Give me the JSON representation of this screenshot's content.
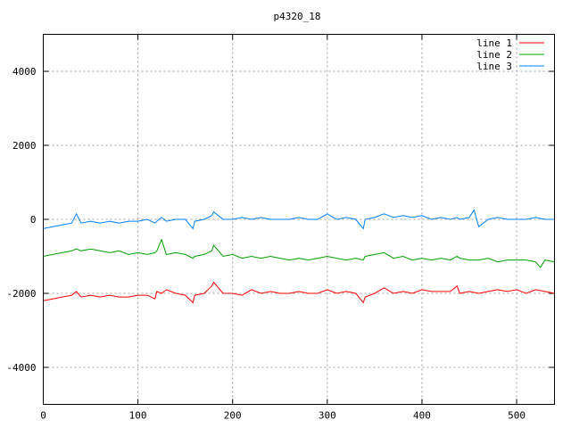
{
  "chart_data": {
    "type": "line",
    "title": "p4320_18",
    "xlabel": "",
    "ylabel": "",
    "xlim": [
      0,
      540
    ],
    "ylim": [
      -5000,
      5000
    ],
    "x_ticks": [
      0,
      100,
      200,
      300,
      400,
      500
    ],
    "y_ticks": [
      -4000,
      -2000,
      0,
      2000,
      4000
    ],
    "grid": true,
    "legend_position": "top-right",
    "series": [
      {
        "name": "line 1",
        "color": "#ff0000",
        "x": [
          0,
          10,
          20,
          30,
          35,
          40,
          50,
          60,
          70,
          80,
          90,
          100,
          110,
          118,
          120,
          125,
          130,
          140,
          150,
          158,
          160,
          170,
          178,
          180,
          190,
          200,
          210,
          220,
          230,
          240,
          250,
          260,
          270,
          280,
          290,
          300,
          310,
          320,
          330,
          338,
          340,
          350,
          360,
          370,
          380,
          390,
          400,
          410,
          420,
          430,
          437,
          440,
          450,
          460,
          470,
          480,
          490,
          500,
          510,
          520,
          530,
          540
        ],
        "values": [
          -2200,
          -2150,
          -2100,
          -2050,
          -1950,
          -2100,
          -2050,
          -2100,
          -2050,
          -2100,
          -2100,
          -2050,
          -2050,
          -2150,
          -1950,
          -2000,
          -1900,
          -2000,
          -2050,
          -2250,
          -2050,
          -2000,
          -1800,
          -1700,
          -2000,
          -2000,
          -2050,
          -1900,
          -2000,
          -1950,
          -2000,
          -2000,
          -1950,
          -2000,
          -2000,
          -1900,
          -2000,
          -1950,
          -2000,
          -2250,
          -2100,
          -2000,
          -1850,
          -2000,
          -1950,
          -2000,
          -1900,
          -1950,
          -1950,
          -1950,
          -1800,
          -2000,
          -1950,
          -2000,
          -1950,
          -1900,
          -1950,
          -1900,
          -2000,
          -1900,
          -1950,
          -2000
        ]
      },
      {
        "name": "line 2",
        "color": "#00a000",
        "x": [
          0,
          10,
          20,
          30,
          35,
          40,
          50,
          60,
          70,
          80,
          90,
          100,
          110,
          118,
          120,
          125,
          130,
          140,
          150,
          158,
          160,
          170,
          178,
          180,
          190,
          200,
          210,
          220,
          230,
          240,
          250,
          260,
          270,
          280,
          290,
          300,
          310,
          320,
          330,
          338,
          340,
          350,
          360,
          370,
          380,
          390,
          400,
          410,
          420,
          430,
          437,
          440,
          450,
          460,
          470,
          480,
          490,
          500,
          510,
          520,
          525,
          530,
          540
        ],
        "values": [
          -1000,
          -950,
          -900,
          -850,
          -800,
          -850,
          -800,
          -850,
          -900,
          -850,
          -950,
          -900,
          -950,
          -900,
          -850,
          -550,
          -950,
          -900,
          -950,
          -1050,
          -1000,
          -950,
          -850,
          -700,
          -1000,
          -950,
          -1050,
          -1000,
          -1050,
          -1000,
          -1050,
          -1100,
          -1050,
          -1100,
          -1050,
          -1000,
          -1050,
          -1100,
          -1050,
          -1100,
          -1000,
          -950,
          -900,
          -1050,
          -1000,
          -1100,
          -1050,
          -1100,
          -1050,
          -1100,
          -1000,
          -1050,
          -1100,
          -1100,
          -1050,
          -1150,
          -1100,
          -1100,
          -1100,
          -1150,
          -1300,
          -1100,
          -1150
        ]
      },
      {
        "name": "line 3",
        "color": "#0080ff",
        "x": [
          0,
          10,
          20,
          30,
          35,
          40,
          50,
          60,
          70,
          80,
          90,
          100,
          110,
          118,
          120,
          125,
          130,
          140,
          150,
          158,
          160,
          170,
          178,
          180,
          190,
          200,
          210,
          220,
          230,
          240,
          250,
          260,
          270,
          280,
          290,
          300,
          310,
          320,
          330,
          338,
          340,
          350,
          360,
          370,
          380,
          390,
          400,
          410,
          420,
          430,
          437,
          440,
          450,
          455,
          460,
          470,
          480,
          490,
          500,
          510,
          520,
          530,
          540
        ],
        "values": [
          -250,
          -200,
          -150,
          -100,
          150,
          -100,
          -50,
          -100,
          -50,
          -100,
          -50,
          -50,
          0,
          -100,
          -50,
          50,
          -50,
          0,
          0,
          -250,
          -50,
          0,
          100,
          200,
          0,
          0,
          50,
          0,
          50,
          0,
          0,
          0,
          50,
          0,
          0,
          150,
          0,
          50,
          0,
          -250,
          0,
          50,
          150,
          50,
          100,
          50,
          100,
          0,
          50,
          0,
          50,
          0,
          50,
          250,
          -200,
          0,
          50,
          0,
          0,
          0,
          50,
          0,
          0
        ]
      }
    ]
  }
}
